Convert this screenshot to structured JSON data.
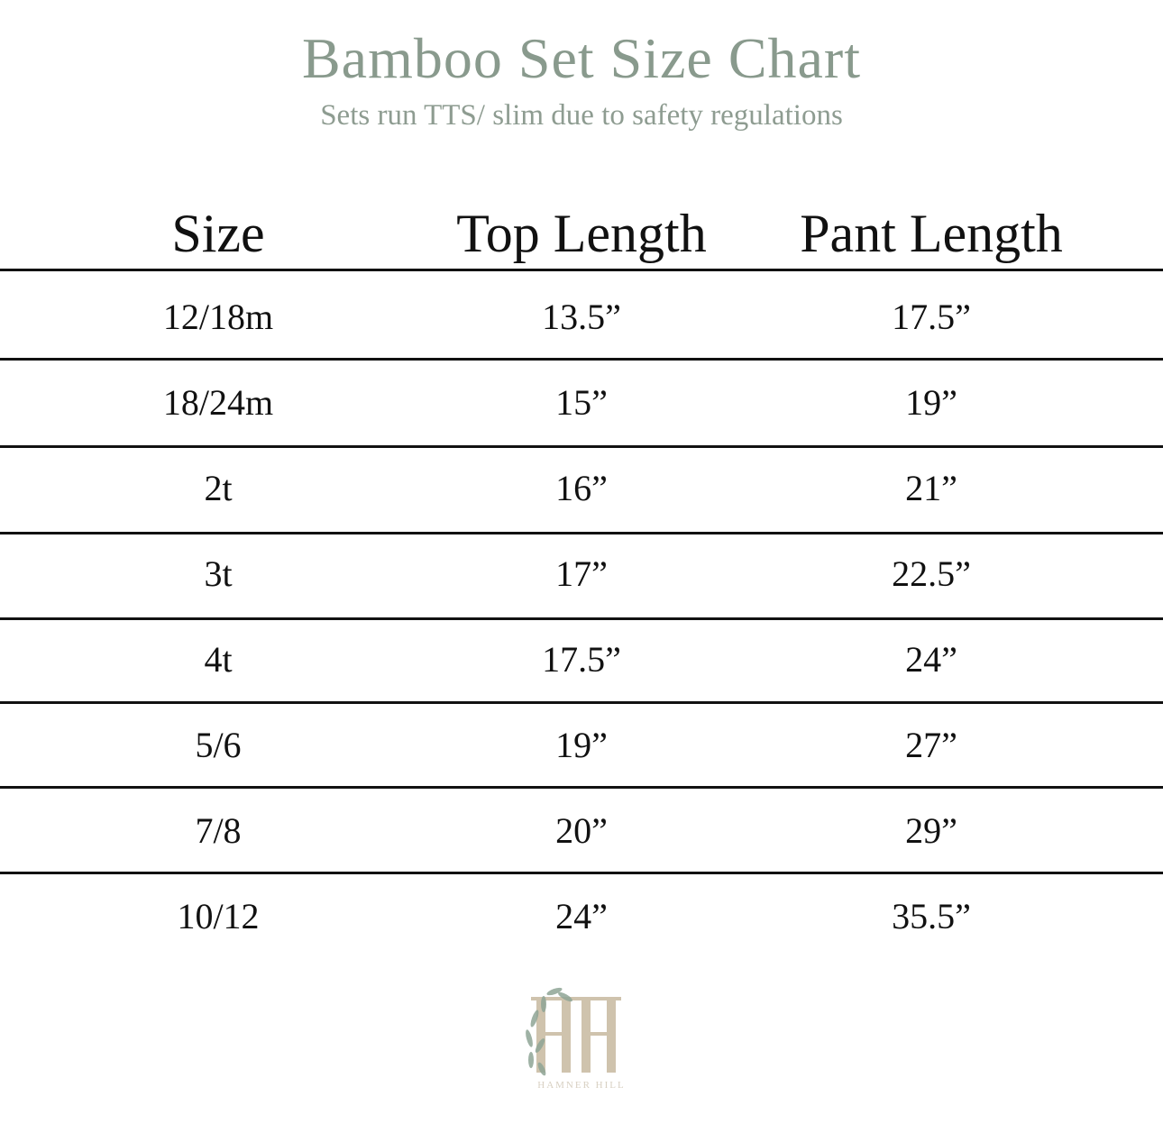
{
  "title": "Bamboo Set Size Chart",
  "subtitle": "Sets run TTS/ slim due to safety regulations",
  "table": {
    "headers": [
      "Size",
      "Top Length",
      "Pant Length"
    ],
    "rows": [
      [
        "12/18m",
        "13.5”",
        "17.5”"
      ],
      [
        "18/24m",
        "15”",
        "19”"
      ],
      [
        "2t",
        "16”",
        "21”"
      ],
      [
        "3t",
        "17”",
        "22.5”"
      ],
      [
        "4t",
        "17.5”",
        "24”"
      ],
      [
        "5/6",
        "19”",
        "27”"
      ],
      [
        "7/8",
        "20”",
        "29”"
      ],
      [
        "10/12",
        "24”",
        "35.5”"
      ]
    ]
  },
  "logo": {
    "monogram": "HH",
    "brand": "HAMNER HILL"
  },
  "colors": {
    "title": "#899a8d",
    "logo": "#cfc3ad",
    "leaf": "#8fa596"
  }
}
